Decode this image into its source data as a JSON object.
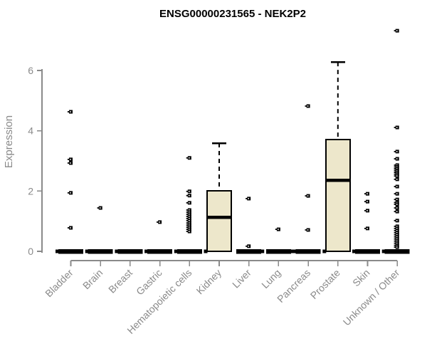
{
  "page": {
    "background": "#FFFFFF"
  },
  "chart_data": {
    "type": "boxplot",
    "title": "ENSG00000231565 - NEK2P2",
    "ylabel": "Expression",
    "xlabel": "",
    "yticks": [
      0,
      2,
      4,
      6
    ],
    "ylim": [
      -0.35,
      7.5
    ],
    "grid": false,
    "legend": null,
    "colors": {
      "box_fill": "#EDE7CB",
      "box_stroke": "#000000",
      "axis": "#8A8A8A",
      "title": "#000000",
      "background": "#FFFFFF"
    },
    "categories": [
      "Bladder",
      "Brain",
      "Breast",
      "Gastric",
      "Hematopoietic cells",
      "Kidney",
      "Liver",
      "Lung",
      "Pancreas",
      "Prostate",
      "Skin",
      "Unknown / Other"
    ],
    "series": [
      {
        "category": "Bladder",
        "box": {
          "q1": 0,
          "median": 0,
          "q3": 0,
          "whisker_low": 0,
          "whisker_high": 0
        },
        "outliers": [
          4.63,
          3.05,
          2.93,
          1.94,
          0.78
        ],
        "zero_nub": "left"
      },
      {
        "category": "Brain",
        "box": {
          "q1": 0,
          "median": 0,
          "q3": 0,
          "whisker_low": 0,
          "whisker_high": 0
        },
        "outliers": [
          1.44
        ],
        "zero_nub": "left"
      },
      {
        "category": "Breast",
        "box": {
          "q1": 0,
          "median": 0,
          "q3": 0,
          "whisker_low": 0,
          "whisker_high": 0
        },
        "outliers": [],
        "zero_nub": "left"
      },
      {
        "category": "Gastric",
        "box": {
          "q1": 0,
          "median": 0,
          "q3": 0,
          "whisker_low": 0,
          "whisker_high": 0
        },
        "outliers": [
          0.97
        ],
        "zero_nub": "left"
      },
      {
        "category": "Hematopoietic cells",
        "box": {
          "q1": 0,
          "median": 0,
          "q3": 0,
          "whisker_low": 0,
          "whisker_high": 0
        },
        "outliers": [
          3.1,
          1.99,
          1.85,
          1.61,
          1.37,
          1.3,
          1.23,
          1.16,
          1.09,
          1.02,
          0.94,
          0.87,
          0.8,
          0.73,
          0.66
        ],
        "zero_nub": "left"
      },
      {
        "category": "Kidney",
        "box": {
          "q1": 0,
          "median": 1.13,
          "q3": 2.01,
          "whisker_low": 0,
          "whisker_high": 3.59
        },
        "outliers": [],
        "zero_nub": "left"
      },
      {
        "category": "Liver",
        "box": {
          "q1": 0,
          "median": 0,
          "q3": 0,
          "whisker_low": 0,
          "whisker_high": 0
        },
        "outliers": [
          1.75,
          0.17
        ],
        "zero_nub": "right"
      },
      {
        "category": "Lung",
        "box": {
          "q1": 0,
          "median": 0,
          "q3": 0,
          "whisker_low": 0,
          "whisker_high": 0
        },
        "outliers": [
          0.73
        ],
        "zero_nub": "right"
      },
      {
        "category": "Pancreas",
        "box": {
          "q1": 0,
          "median": 0,
          "q3": 0,
          "whisker_low": 0,
          "whisker_high": 0
        },
        "outliers": [
          4.82,
          1.84,
          0.71
        ],
        "zero_nub": "left"
      },
      {
        "category": "Prostate",
        "box": {
          "q1": 0,
          "median": 2.36,
          "q3": 3.71,
          "whisker_low": 0,
          "whisker_high": 6.28
        },
        "outliers": [],
        "zero_nub": "left"
      },
      {
        "category": "Skin",
        "box": {
          "q1": 0,
          "median": 0,
          "q3": 0,
          "whisker_low": 0,
          "whisker_high": 0
        },
        "outliers": [
          1.91,
          1.65,
          1.35,
          0.76
        ],
        "zero_nub": "left"
      },
      {
        "category": "Unknown / Other",
        "box": {
          "q1": 0,
          "median": 0,
          "q3": 0,
          "whisker_low": 0,
          "whisker_high": 0
        },
        "outliers": [
          7.32,
          4.11,
          3.31,
          3.07,
          2.86,
          2.8,
          2.74,
          2.68,
          2.62,
          2.56,
          2.5,
          2.39,
          2.15,
          1.91,
          1.72,
          1.62,
          1.56,
          1.44,
          1.32,
          1.02,
          0.83,
          0.76,
          0.69,
          0.62,
          0.55,
          0.48,
          0.41,
          0.34,
          0.27,
          0.2,
          0.14
        ],
        "zero_nub": "left"
      }
    ]
  }
}
